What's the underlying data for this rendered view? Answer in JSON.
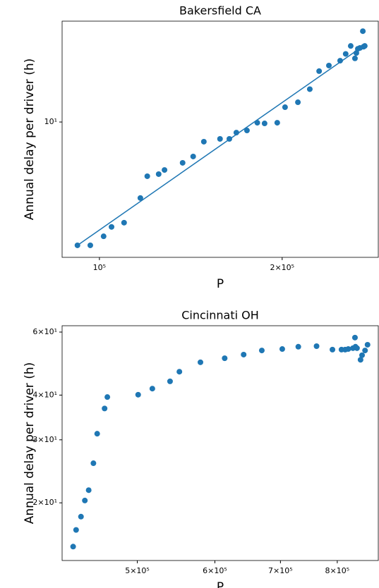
{
  "chart_data": [
    {
      "type": "scatter",
      "title": "Bakersfield CA",
      "x_label": "P",
      "y_label": "Annual delay per driver (h)",
      "log_x": true,
      "log_y": true,
      "color": "#1f77b4",
      "x": [
        92000,
        96600,
        101600,
        104700,
        109800,
        116800,
        119900,
        125200,
        128000,
        137100,
        142700,
        148600,
        158000,
        163700,
        168100,
        175000,
        182000,
        187100,
        196300,
        202200,
        212300,
        222100,
        230100,
        238800,
        249200,
        254500,
        259400,
        263600,
        265000,
        266500,
        268600,
        271600,
        272300,
        273600
      ],
      "y": [
        2.61,
        2.61,
        2.88,
        3.19,
        3.34,
        4.37,
        5.54,
        5.67,
        5.93,
        6.41,
        6.87,
        8.07,
        8.32,
        8.32,
        8.91,
        9.12,
        9.92,
        9.85,
        9.92,
        11.75,
        12.4,
        14.3,
        17.4,
        18.5,
        19.5,
        21.0,
        22.9,
        20.0,
        21.2,
        22.2,
        22.4,
        26.9,
        22.7,
        22.9
      ],
      "fit": {
        "x": [
          92000,
          275000
        ],
        "y": [
          2.61,
          23.4
        ]
      },
      "xlim": [
        86800,
        288000
      ],
      "ylim": [
        2.29,
        30
      ],
      "xticks": [
        {
          "value": 100000,
          "label": "10⁵"
        },
        {
          "value": 200000,
          "label": "2×10⁵"
        }
      ],
      "yticks": [
        {
          "value": 10,
          "label": "10¹"
        }
      ]
    },
    {
      "type": "scatter",
      "title": "Cincinnati OH",
      "x_label": "P",
      "y_label": "Annual delay per driver (h)",
      "log_x": true,
      "log_y": true,
      "color": "#1f77b4",
      "x": [
        430000,
        433000,
        438000,
        442000,
        446000,
        451000,
        455000,
        463000,
        466000,
        501000,
        518000,
        540000,
        552000,
        580000,
        614000,
        642000,
        670000,
        703000,
        730000,
        762000,
        791000,
        808000,
        815000,
        821000,
        830000,
        834000,
        835000,
        838000,
        845000,
        848000,
        854000,
        859000
      ],
      "y": [
        15.09,
        16.8,
        18.3,
        20.3,
        21.7,
        25.8,
        31.2,
        36.7,
        39.5,
        40.1,
        41.7,
        43.7,
        46.5,
        49.4,
        50.7,
        51.9,
        53.3,
        53.8,
        54.6,
        54.8,
        53.6,
        53.6,
        53.6,
        53.8,
        54.1,
        57.9,
        54.6,
        54.1,
        50.2,
        51.7,
        53.3,
        55.3
      ],
      "xlim": [
        419000,
        881000
      ],
      "ylim": [
        13.8,
        62.5
      ],
      "xticks": [
        {
          "value": 500000,
          "label": "5×10⁵"
        },
        {
          "value": 600000,
          "label": "6×10⁵"
        },
        {
          "value": 700000,
          "label": "7×10⁵"
        },
        {
          "value": 800000,
          "label": "8×10⁵"
        }
      ],
      "yticks": [
        {
          "value": 20,
          "label": "2×10¹"
        },
        {
          "value": 30,
          "label": "3×10¹"
        },
        {
          "value": 40,
          "label": "4×10¹"
        },
        {
          "value": 60,
          "label": "6×10¹"
        }
      ]
    }
  ]
}
